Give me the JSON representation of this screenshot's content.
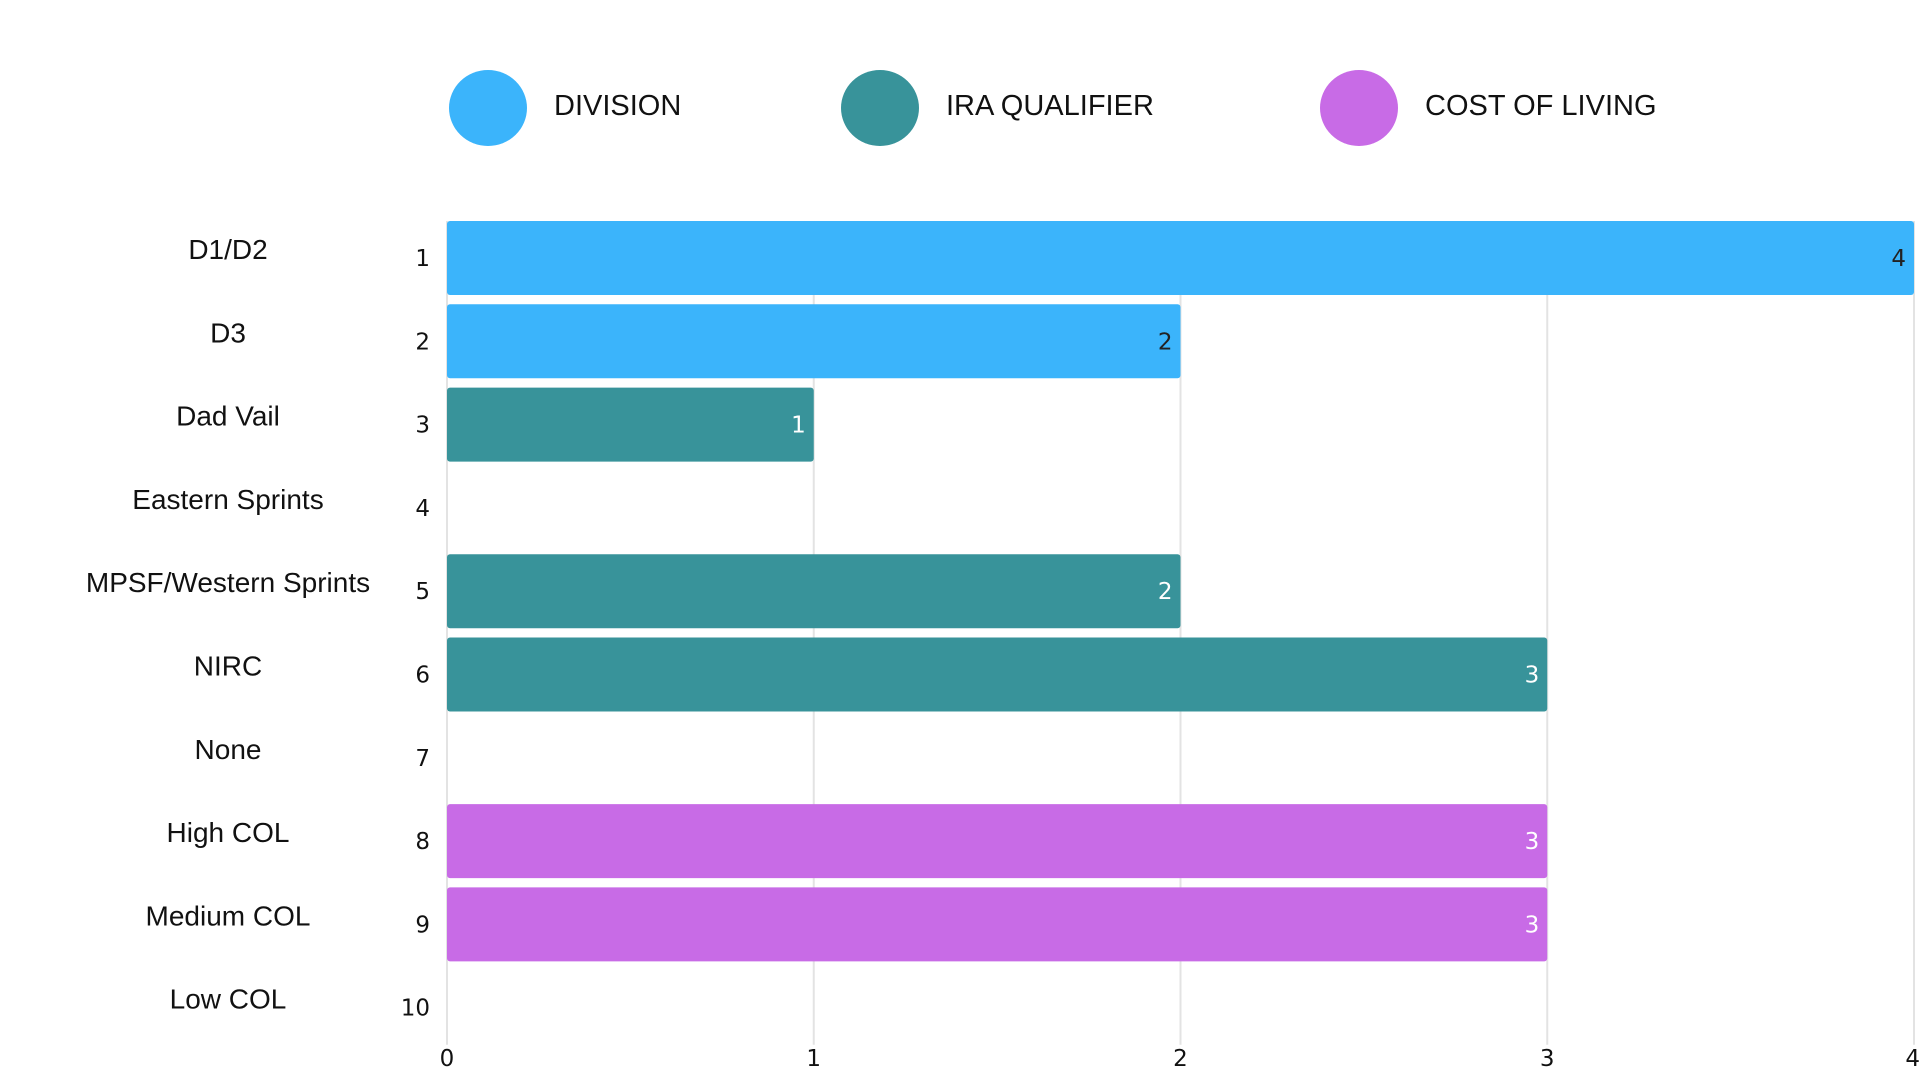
{
  "chart_data": {
    "type": "bar",
    "orientation": "horizontal",
    "categories": [
      "D1/D2",
      "D3",
      "Dad Vail",
      "Eastern Sprints",
      "MPSF/Western Sprints",
      "NIRC",
      "None",
      "High COL",
      "Medium COL",
      "Low COL"
    ],
    "ranks": [
      "1",
      "2",
      "3",
      "4",
      "5",
      "6",
      "7",
      "8",
      "9",
      "10"
    ],
    "values": [
      4,
      2,
      1,
      null,
      2,
      3,
      null,
      3,
      3,
      null
    ],
    "value_labels": [
      "4",
      "2",
      "1",
      "",
      "2",
      "3",
      "",
      "3",
      "3",
      ""
    ],
    "groups": [
      "DIVISION",
      "DIVISION",
      "IRA QUALIFIER",
      "IRA QUALIFIER",
      "IRA QUALIFIER",
      "IRA QUALIFIER",
      "IRA QUALIFIER",
      "COST OF LIVING",
      "COST OF LIVING",
      "COST OF LIVING"
    ],
    "legend": [
      {
        "name": "DIVISION",
        "color": "#3bb4fb",
        "label_color": "#222222"
      },
      {
        "name": "IRA QUALIFIER",
        "color": "#38939a",
        "label_color": "#ffffff"
      },
      {
        "name": "COST OF LIVING",
        "color": "#c86be6",
        "label_color": "#ffffff"
      }
    ],
    "legend_position": "top",
    "xlim": [
      0,
      4
    ],
    "xticks": [
      "0",
      "1",
      "2",
      "3",
      "4"
    ],
    "grid": true,
    "title": "",
    "xlabel": "",
    "ylabel": ""
  }
}
